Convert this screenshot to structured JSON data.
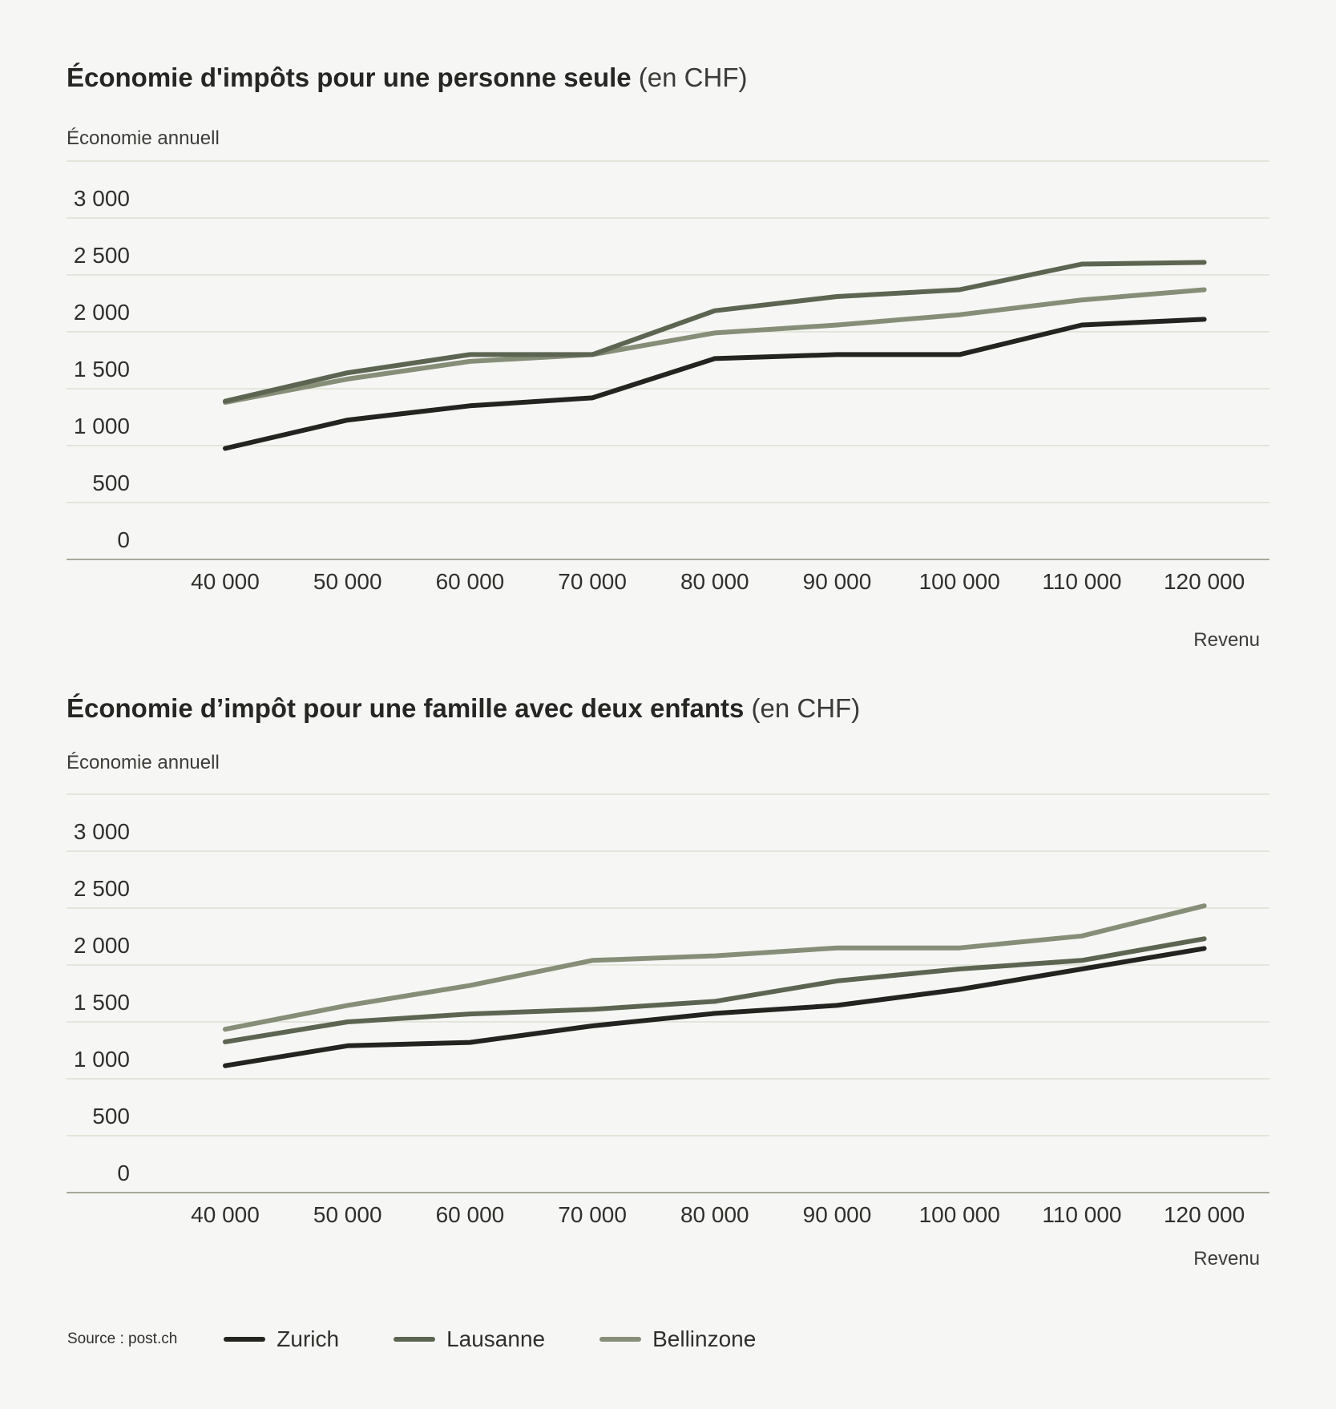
{
  "colors": {
    "Zurich": "#23241f",
    "Lausanne": "#5c6551",
    "Bellinzone": "#868e78",
    "grid": "#d5dccb",
    "axis": "#8a8f7c"
  },
  "chart_data": [
    {
      "type": "line",
      "title": "Économie d'impôts pour une personne seule",
      "title_unit": "(en CHF)",
      "ylabel": "Économie annuell",
      "xlabel": "Revenu",
      "x": [
        40000,
        50000,
        60000,
        70000,
        80000,
        90000,
        100000,
        110000,
        120000
      ],
      "x_tick_labels": [
        "40 000",
        "50 000",
        "60 000",
        "70 000",
        "80 000",
        "90 000",
        "100 000",
        "110 000",
        "120 000"
      ],
      "y_ticks": [
        0,
        500,
        1000,
        1500,
        2000,
        2500,
        3000
      ],
      "y_tick_labels": [
        "0",
        "500",
        "1 000",
        "1 500",
        "2 000",
        "2 500",
        "3 000"
      ],
      "ylim": [
        0,
        3500
      ],
      "grid": true,
      "series": [
        {
          "name": "Zurich",
          "values": [
            975,
            1225,
            1350,
            1420,
            1765,
            1800,
            1800,
            2060,
            2110
          ]
        },
        {
          "name": "Lausanne",
          "values": [
            1390,
            1640,
            1800,
            1800,
            2185,
            2310,
            2370,
            2595,
            2610
          ]
        },
        {
          "name": "Bellinzone",
          "values": [
            1380,
            1585,
            1740,
            1800,
            1990,
            2060,
            2150,
            2280,
            2370
          ]
        }
      ]
    },
    {
      "type": "line",
      "title": "Économie d’impôt pour une famille avec deux enfants",
      "title_unit": "(en CHF)",
      "ylabel": "Économie annuell",
      "xlabel": "Revenu",
      "x": [
        40000,
        50000,
        60000,
        70000,
        80000,
        90000,
        100000,
        110000,
        120000
      ],
      "x_tick_labels": [
        "40 000",
        "50 000",
        "60 000",
        "70 000",
        "80 000",
        "90 000",
        "100 000",
        "110 000",
        "120 000"
      ],
      "y_ticks": [
        0,
        500,
        1000,
        1500,
        2000,
        2500,
        3000
      ],
      "y_tick_labels": [
        "0",
        "500",
        "1 000",
        "1 500",
        "2 000",
        "2 500",
        "3 000"
      ],
      "ylim": [
        0,
        3500
      ],
      "grid": true,
      "series": [
        {
          "name": "Zurich",
          "values": [
            1115,
            1290,
            1320,
            1465,
            1575,
            1645,
            1785,
            1965,
            2145
          ]
        },
        {
          "name": "Lausanne",
          "values": [
            1325,
            1500,
            1570,
            1610,
            1680,
            1860,
            1965,
            2040,
            2230
          ]
        },
        {
          "name": "Bellinzone",
          "values": [
            1435,
            1645,
            1820,
            2040,
            2080,
            2150,
            2150,
            2255,
            2520
          ]
        }
      ]
    }
  ],
  "legend": {
    "source": "Source : post.ch",
    "items": [
      "Zurich",
      "Lausanne",
      "Bellinzone"
    ]
  }
}
